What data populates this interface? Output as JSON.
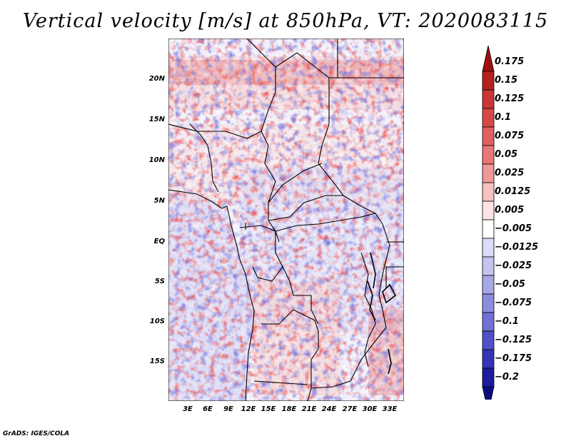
{
  "title": "Vertical velocity [m/s] at 850hPa, VT: 2020083115",
  "lat_ticks": [
    "20N",
    "15N",
    "10N",
    "5N",
    "EQ",
    "5S",
    "10S",
    "15S"
  ],
  "lon_ticks": [
    "3E",
    "6E",
    "9E",
    "12E",
    "15E",
    "18E",
    "21E",
    "24E",
    "27E",
    "30E",
    "33E"
  ],
  "colorbar": {
    "labels": [
      "0.175",
      "0.15",
      "0.125",
      "0.1",
      "0.075",
      "0.05",
      "0.025",
      "0.0125",
      "0.005",
      "−0.005",
      "−0.0125",
      "−0.025",
      "−0.05",
      "−0.075",
      "−0.1",
      "−0.125",
      "−0.175",
      "−0.2"
    ],
    "colors": [
      "#a01010",
      "#b82020",
      "#cc3535",
      "#d84848",
      "#e06060",
      "#e87878",
      "#f09898",
      "#f8c0c0",
      "#fce4e4",
      "#ffffff",
      "#dcdcf8",
      "#c4c4f0",
      "#a8a8e8",
      "#8c8ce0",
      "#7070d8",
      "#5050c8",
      "#3434b8",
      "#1c1ca0",
      "#0c0c80"
    ]
  },
  "footer": "GrADS: IGES/COLA"
}
